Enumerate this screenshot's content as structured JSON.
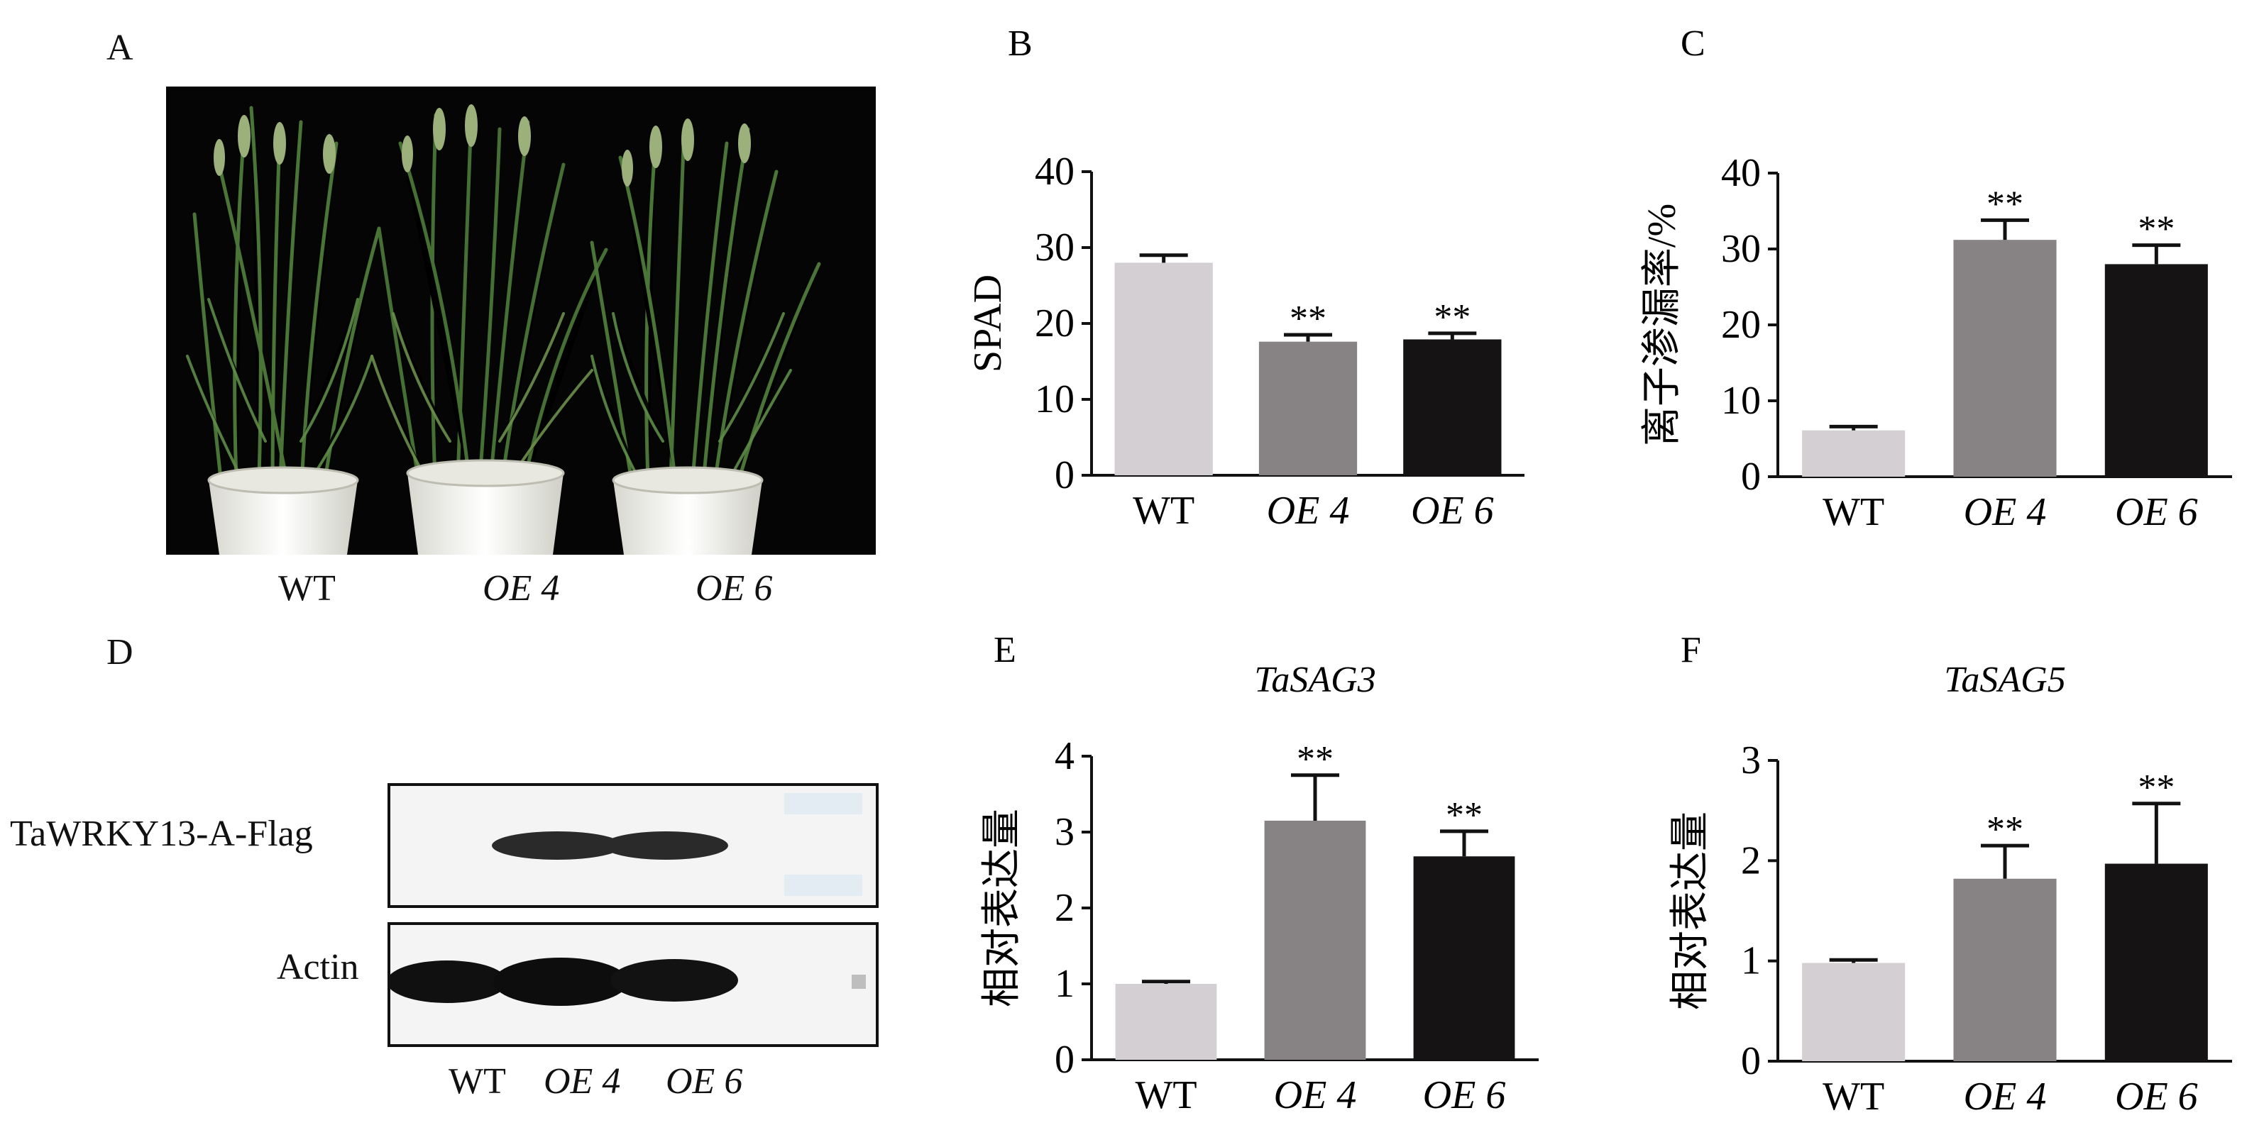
{
  "panels": {
    "A": {
      "letter": "A",
      "labels": [
        "WT",
        "OE 4",
        "OE 6"
      ]
    },
    "D": {
      "letter": "D",
      "row_labels": [
        "TaWRKY13-A-Flag",
        "Actin"
      ],
      "lane_labels": [
        "WT",
        "OE 4",
        "OE 6"
      ]
    }
  },
  "chart_data": [
    {
      "panel": "B",
      "type": "bar",
      "title": "",
      "ylabel": "SPAD",
      "categories": [
        "WT",
        "OE 4",
        "OE 6"
      ],
      "values": [
        28,
        17.6,
        17.9
      ],
      "errors": [
        1.0,
        0.9,
        0.8
      ],
      "significance": [
        "",
        "**",
        "**"
      ],
      "colors": [
        "#d3cfd2",
        "#878283",
        "#151314"
      ],
      "ylim": [
        0,
        40
      ],
      "yticks": [
        0,
        10,
        20,
        30,
        40
      ]
    },
    {
      "panel": "C",
      "type": "bar",
      "title": "",
      "ylabel": "离子渗漏率/%",
      "categories": [
        "WT",
        "OE 4",
        "OE 6"
      ],
      "values": [
        6.1,
        31.2,
        28
      ],
      "errors": [
        0.5,
        2.6,
        2.5
      ],
      "significance": [
        "",
        "**",
        "**"
      ],
      "colors": [
        "#d3cfd2",
        "#878283",
        "#151314"
      ],
      "ylim": [
        0,
        40
      ],
      "yticks": [
        0,
        10,
        20,
        30,
        40
      ]
    },
    {
      "panel": "E",
      "type": "bar",
      "title": "TaSAG3",
      "ylabel": "相对表达量",
      "categories": [
        "WT",
        "OE 4",
        "OE 6"
      ],
      "values": [
        1.0,
        3.15,
        2.68
      ],
      "errors": [
        0.03,
        0.6,
        0.33
      ],
      "significance": [
        "",
        "**",
        "**"
      ],
      "colors": [
        "#d3cfd2",
        "#878283",
        "#151314"
      ],
      "ylim": [
        0,
        4
      ],
      "yticks": [
        0,
        1,
        2,
        3,
        4
      ]
    },
    {
      "panel": "F",
      "type": "bar",
      "title": "TaSAG5",
      "ylabel": "相对表达量",
      "categories": [
        "WT",
        "OE 4",
        "OE 6"
      ],
      "values": [
        0.98,
        1.82,
        1.97
      ],
      "errors": [
        0.03,
        0.33,
        0.6
      ],
      "significance": [
        "",
        "**",
        "**"
      ],
      "colors": [
        "#d3cfd2",
        "#878283",
        "#151314"
      ],
      "ylim": [
        0,
        3
      ],
      "yticks": [
        0,
        1,
        2,
        3
      ]
    }
  ]
}
